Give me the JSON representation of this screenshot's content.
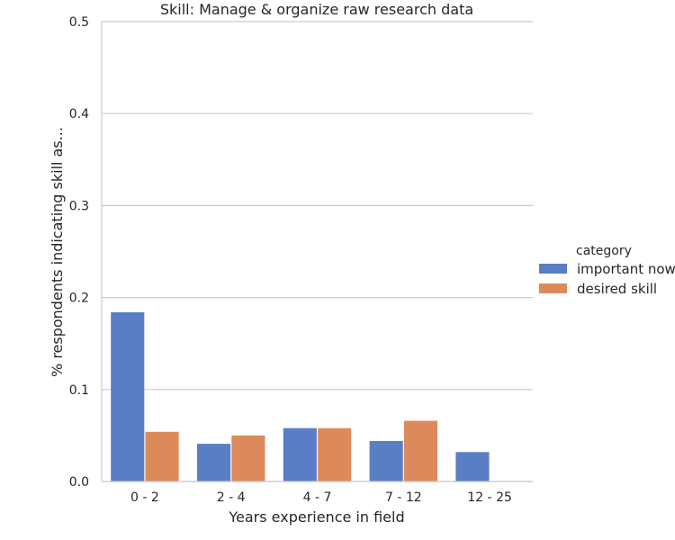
{
  "chart_data": {
    "type": "bar",
    "title": "Skill: Manage & organize raw research data",
    "xlabel": "Years experience in field",
    "ylabel": "% respondents indicating skill as...",
    "categories": [
      "0 - 2",
      "2 - 4",
      "4 - 7",
      "7 - 12",
      "12 - 25"
    ],
    "ylim": [
      0,
      0.5
    ],
    "yticks": [
      "0.0",
      "0.1",
      "0.2",
      "0.3",
      "0.4",
      "0.5"
    ],
    "grid": "horizontal",
    "legend": {
      "title": "category",
      "placement": "right"
    },
    "series": [
      {
        "name": "important now",
        "color": "#5a7ec6",
        "values": [
          0.184,
          0.041,
          0.058,
          0.044,
          0.032
        ]
      },
      {
        "name": "desired skill",
        "color": "#dc8a5c",
        "values": [
          0.054,
          0.05,
          0.058,
          0.066,
          0.0
        ]
      }
    ]
  }
}
